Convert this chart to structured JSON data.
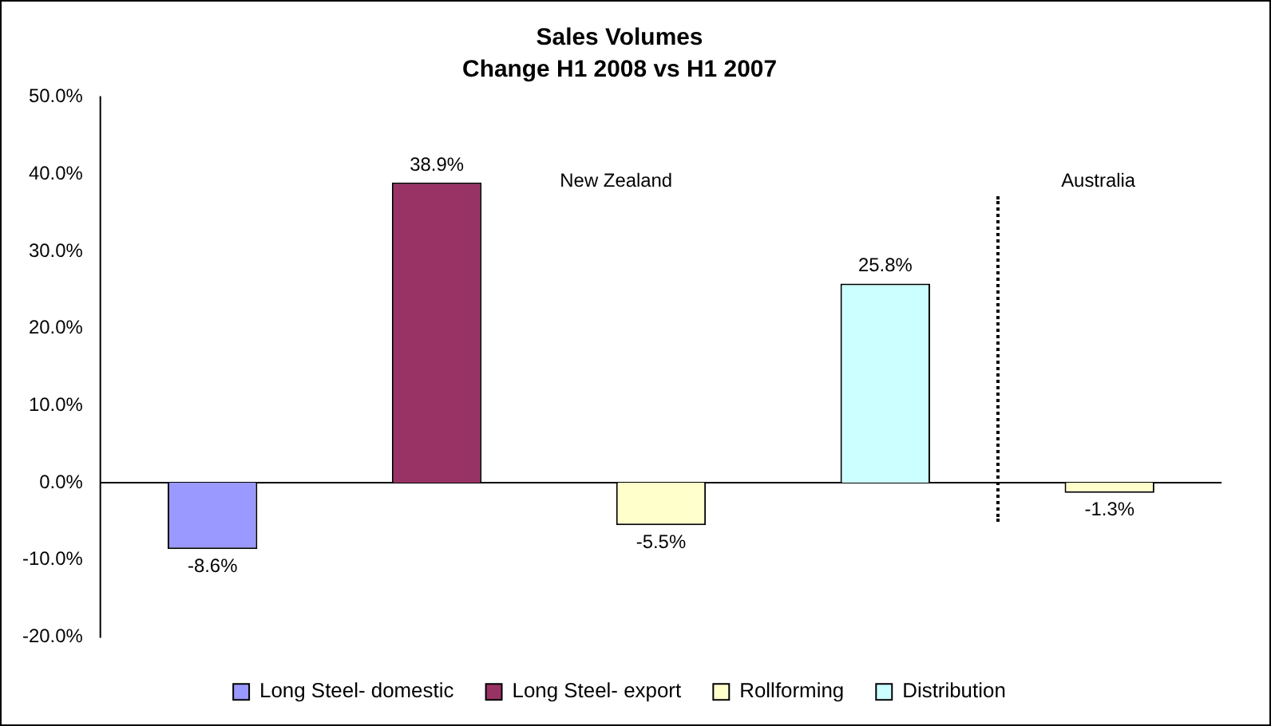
{
  "chart_data": {
    "type": "bar",
    "title": "Sales Volumes",
    "subtitle": "Change H1 2008 vs H1 2007",
    "categories": [
      null,
      null,
      null,
      null,
      null
    ],
    "series": [
      {
        "name": "Long Steel- domestic",
        "color": "#9999ff",
        "values": [
          -8.6,
          null,
          null,
          null,
          null
        ],
        "value_labels": [
          "-8.6%",
          null,
          null,
          null,
          null
        ]
      },
      {
        "name": "Long Steel- export",
        "color": "#993366",
        "values": [
          null,
          38.9,
          null,
          null,
          null
        ],
        "value_labels": [
          null,
          "38.9%",
          null,
          null,
          null
        ]
      },
      {
        "name": "Rollforming",
        "color": "#ffffcc",
        "values": [
          null,
          null,
          -5.5,
          null,
          -1.3
        ],
        "value_labels": [
          null,
          null,
          "-5.5%",
          null,
          "-1.3%"
        ]
      },
      {
        "name": "Distribution",
        "color": "#ccffff",
        "values": [
          null,
          null,
          null,
          25.8,
          null
        ],
        "value_labels": [
          null,
          null,
          null,
          "25.8%",
          null
        ]
      }
    ],
    "ylim": [
      -20,
      50
    ],
    "yticks": [
      {
        "value": -20,
        "label": "-20.0%"
      },
      {
        "value": -10,
        "label": "-10.0%"
      },
      {
        "value": 0,
        "label": "0.0%"
      },
      {
        "value": 10,
        "label": "10.0%"
      },
      {
        "value": 20,
        "label": "20.0%"
      },
      {
        "value": 30,
        "label": "30.0%"
      },
      {
        "value": 40,
        "label": "40.0%"
      },
      {
        "value": 50,
        "label": "50.0%"
      }
    ],
    "grid": false,
    "ref_lines": [
      {
        "axis": "y",
        "value": 0,
        "color": "#000000",
        "line_style": "solid"
      }
    ],
    "legend": "bottom",
    "annotations": [
      "New Zealand",
      "Australia"
    ]
  }
}
